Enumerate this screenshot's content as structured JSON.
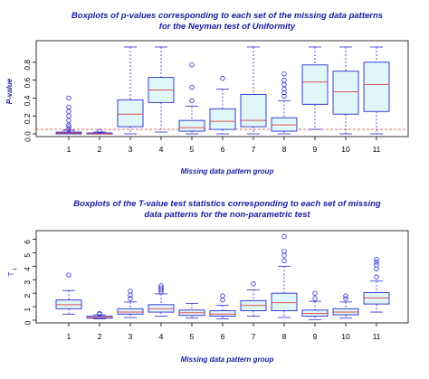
{
  "chart_data": [
    {
      "type": "boxplot",
      "title_lines": [
        "Boxplots of p-values corresponding to each set of the missing data patterns",
        "for the Neyman test of Uniformity"
      ],
      "xlabel": "Missing data pattern group",
      "ylabel": "P-value",
      "ylim": [
        0,
        1.0
      ],
      "yticks": [
        "0.0",
        "0.2",
        "0.4",
        "0.6",
        "0.8"
      ],
      "reference_line": 0.05,
      "categories": [
        "1",
        "2",
        "3",
        "4",
        "5",
        "6",
        "7",
        "8",
        "9",
        "10",
        "11"
      ],
      "boxes": [
        {
          "wlo": 0.0,
          "q1": 0.0,
          "med": 0.01,
          "q3": 0.02,
          "whi": 0.04,
          "outliers": [
            0.05,
            0.08,
            0.1,
            0.15,
            0.2,
            0.25,
            0.3,
            0.4
          ]
        },
        {
          "wlo": 0.0,
          "q1": 0.0,
          "med": 0.0,
          "q3": 0.01,
          "whi": 0.02,
          "outliers": [
            0.03
          ]
        },
        {
          "wlo": 0.0,
          "q1": 0.08,
          "med": 0.22,
          "q3": 0.38,
          "whi": 0.97,
          "outliers": []
        },
        {
          "wlo": 0.02,
          "q1": 0.35,
          "med": 0.49,
          "q3": 0.63,
          "whi": 0.97,
          "outliers": []
        },
        {
          "wlo": 0.0,
          "q1": 0.03,
          "med": 0.07,
          "q3": 0.15,
          "whi": 0.31,
          "outliers": [
            0.37,
            0.52,
            0.77
          ]
        },
        {
          "wlo": 0.0,
          "q1": 0.05,
          "med": 0.14,
          "q3": 0.28,
          "whi": 0.5,
          "outliers": [
            0.62
          ]
        },
        {
          "wlo": 0.0,
          "q1": 0.08,
          "med": 0.15,
          "q3": 0.44,
          "whi": 0.97,
          "outliers": []
        },
        {
          "wlo": 0.0,
          "q1": 0.03,
          "med": 0.1,
          "q3": 0.18,
          "whi": 0.37,
          "outliers": [
            0.42,
            0.46,
            0.5,
            0.55,
            0.6,
            0.67
          ]
        },
        {
          "wlo": 0.05,
          "q1": 0.33,
          "med": 0.58,
          "q3": 0.77,
          "whi": 0.97,
          "outliers": []
        },
        {
          "wlo": 0.0,
          "q1": 0.22,
          "med": 0.47,
          "q3": 0.7,
          "whi": 0.97,
          "outliers": []
        },
        {
          "wlo": 0.0,
          "q1": 0.25,
          "med": 0.55,
          "q3": 0.8,
          "whi": 0.97,
          "outliers": []
        }
      ]
    },
    {
      "type": "boxplot",
      "title_lines": [
        "Boxplots of the T-value test statistics corresponding to each set of missing",
        "data patterns for the non-parametric test"
      ],
      "xlabel": "Missing data pattern group",
      "ylabel": "T",
      "ylabel_sub": "1",
      "ylim": [
        0,
        6.3
      ],
      "yticks": [
        "0",
        "1",
        "2",
        "3",
        "4",
        "5",
        "6"
      ],
      "categories": [
        "1",
        "2",
        "3",
        "4",
        "5",
        "6",
        "7",
        "8",
        "9",
        "10",
        "11"
      ],
      "boxes": [
        {
          "wlo": 0.45,
          "q1": 0.85,
          "med": 1.15,
          "q3": 1.5,
          "whi": 2.2,
          "outliers": [
            3.35
          ]
        },
        {
          "wlo": 0.1,
          "q1": 0.15,
          "med": 0.2,
          "q3": 0.3,
          "whi": 0.4,
          "outliers": [
            0.45,
            0.5
          ]
        },
        {
          "wlo": 0.2,
          "q1": 0.45,
          "med": 0.6,
          "q3": 0.85,
          "whi": 1.35,
          "outliers": [
            1.6,
            1.85,
            2.15
          ]
        },
        {
          "wlo": 0.3,
          "q1": 0.6,
          "med": 0.85,
          "q3": 1.15,
          "whi": 1.95,
          "outliers": [
            2.1,
            2.25,
            2.4,
            2.55
          ]
        },
        {
          "wlo": 0.15,
          "q1": 0.35,
          "med": 0.55,
          "q3": 0.75,
          "whi": 1.25,
          "outliers": []
        },
        {
          "wlo": 0.1,
          "q1": 0.3,
          "med": 0.45,
          "q3": 0.7,
          "whi": 1.1,
          "outliers": [
            1.5,
            1.8
          ]
        },
        {
          "wlo": 0.3,
          "q1": 0.7,
          "med": 1.1,
          "q3": 1.45,
          "whi": 2.25,
          "outliers": [
            2.7
          ]
        },
        {
          "wlo": 0.2,
          "q1": 0.7,
          "med": 1.3,
          "q3": 2.0,
          "whi": 4.0,
          "outliers": [
            4.4,
            4.8,
            5.1,
            6.2
          ]
        },
        {
          "wlo": 0.05,
          "q1": 0.3,
          "med": 0.5,
          "q3": 0.75,
          "whi": 1.4,
          "outliers": [
            1.6,
            2.0
          ]
        },
        {
          "wlo": 0.15,
          "q1": 0.4,
          "med": 0.6,
          "q3": 0.85,
          "whi": 1.35,
          "outliers": [
            1.6,
            1.8
          ]
        },
        {
          "wlo": 0.6,
          "q1": 1.2,
          "med": 1.65,
          "q3": 2.05,
          "whi": 2.9,
          "outliers": [
            3.2,
            3.8,
            4.1,
            4.3,
            4.5
          ]
        }
      ]
    }
  ],
  "colors": {
    "box_border": "#2a2ad0",
    "box_fill": "#dff7f9",
    "median": "#e05050",
    "reference_line": "#e05050",
    "outlier": "#2a2ad0",
    "title": "#1a1aa0"
  }
}
